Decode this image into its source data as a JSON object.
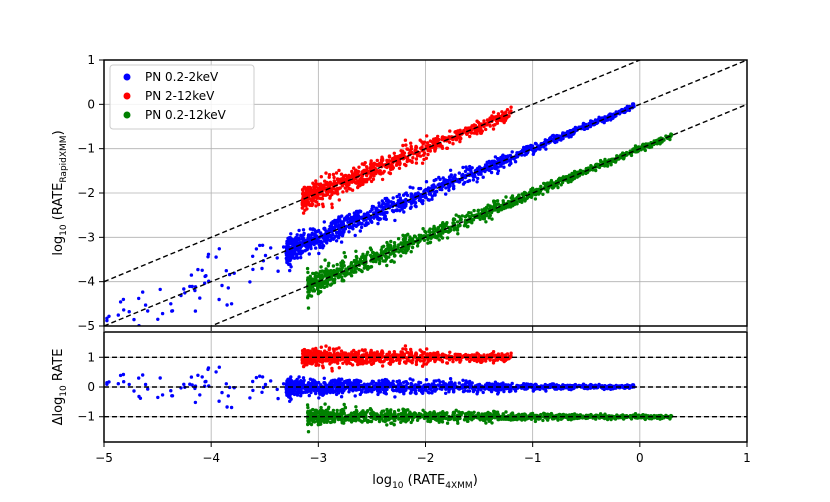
{
  "chart_data": [
    {
      "type": "scatter",
      "panel": "top",
      "xlim": [
        -5,
        1
      ],
      "ylim": [
        -5,
        1
      ],
      "x_ticks": [
        -5,
        -4,
        -3,
        -2,
        -1,
        0,
        1
      ],
      "y_ticks": [
        -5,
        -4,
        -3,
        -2,
        -1,
        0,
        1
      ],
      "x_tick_labels": [
        "",
        "",
        "",
        "",
        "",
        "",
        ""
      ],
      "y_tick_labels": [
        "−5",
        "−4",
        "−3",
        "−2",
        "−1",
        "0",
        "1"
      ],
      "ylabel": {
        "main": "log",
        "sub1": "10",
        "mid": " (RATE",
        "sub2": "RapidXMM",
        "end": ")"
      },
      "grid": true,
      "legend_position": "upper-left",
      "series": [
        {
          "name": "PN 0.2-2keV",
          "color": "#0000ff",
          "offset": 0,
          "x_range": [
            -3.3,
            -0.05
          ],
          "density": "high",
          "outlier_region": [
            -5,
            -3.3
          ]
        },
        {
          "name": "PN 2-12keV",
          "color": "#ff0000",
          "offset": 1,
          "x_range": [
            -3.15,
            -1.2
          ],
          "density": "high"
        },
        {
          "name": "PN 0.2-12keV",
          "color": "#008000",
          "offset": -1,
          "x_range": [
            -3.1,
            0.3
          ],
          "density": "high"
        }
      ],
      "reference_lines": [
        {
          "label": "y = x + 1",
          "style": "dashed"
        },
        {
          "label": "y = x",
          "style": "dashed"
        },
        {
          "label": "y = x - 1",
          "style": "dashed"
        }
      ]
    },
    {
      "type": "scatter",
      "panel": "bottom",
      "xlim": [
        -5,
        1
      ],
      "ylim": [
        -1.85,
        1.85
      ],
      "x_ticks": [
        -5,
        -4,
        -3,
        -2,
        -1,
        0,
        1
      ],
      "x_tick_labels": [
        "−5",
        "−4",
        "−3",
        "−2",
        "−1",
        "0",
        "1"
      ],
      "y_ticks": [
        -1,
        0,
        1
      ],
      "y_tick_labels": [
        "−1",
        "0",
        "1"
      ],
      "xlabel": {
        "main": "log",
        "sub1": "10",
        "mid": " (RATE",
        "sub2": "4XMM",
        "end": ")"
      },
      "ylabel": {
        "main": "Δlog",
        "sub1": "10",
        "end": " RATE"
      },
      "grid": true,
      "series": [
        {
          "name": "PN 0.2-2keV",
          "color": "#0000ff",
          "level": 0
        },
        {
          "name": "PN 2-12keV",
          "color": "#ff0000",
          "level": 1
        },
        {
          "name": "PN 0.2-12keV",
          "color": "#008000",
          "level": -1
        }
      ],
      "reference_lines": [
        {
          "y": 1,
          "style": "dashed"
        },
        {
          "y": 0,
          "style": "dashed"
        },
        {
          "y": -1,
          "style": "dashed"
        }
      ]
    }
  ]
}
